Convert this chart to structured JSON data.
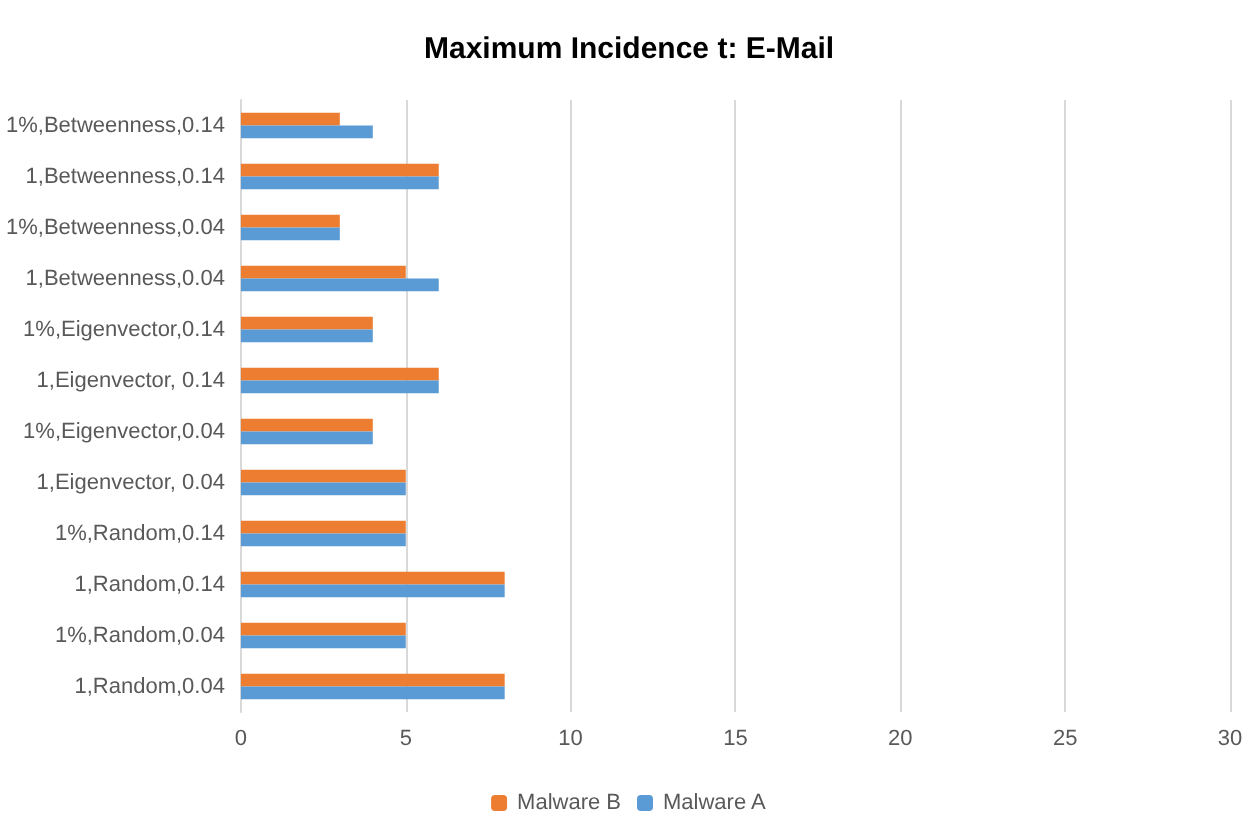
{
  "chart_data": {
    "type": "bar",
    "orientation": "horizontal",
    "title": "Maximum Incidence t: E-Mail",
    "categories": [
      "1%,Betweenness,0.14",
      "1,Betweenness,0.14",
      "1%,Betweenness,0.04",
      "1,Betweenness,0.04",
      "1%,Eigenvector,0.14",
      "1,Eigenvector, 0.14",
      "1%,Eigenvector,0.04",
      "1,Eigenvector, 0.04",
      "1%,Random,0.14",
      "1,Random,0.14",
      "1%,Random,0.04",
      "1,Random,0.04"
    ],
    "series": [
      {
        "name": "Malware B",
        "color": "#ed7d31",
        "values": [
          3,
          6,
          3,
          5,
          4,
          6,
          4,
          5,
          5,
          8,
          5,
          8
        ]
      },
      {
        "name": "Malware A",
        "color": "#5b9bd5",
        "values": [
          4,
          6,
          3,
          6,
          4,
          6,
          4,
          5,
          5,
          8,
          5,
          8
        ]
      }
    ],
    "xlim": [
      0,
      30
    ],
    "xticks": [
      0,
      5,
      10,
      15,
      20,
      25,
      30
    ],
    "grid": "x",
    "legend": "bottom"
  }
}
